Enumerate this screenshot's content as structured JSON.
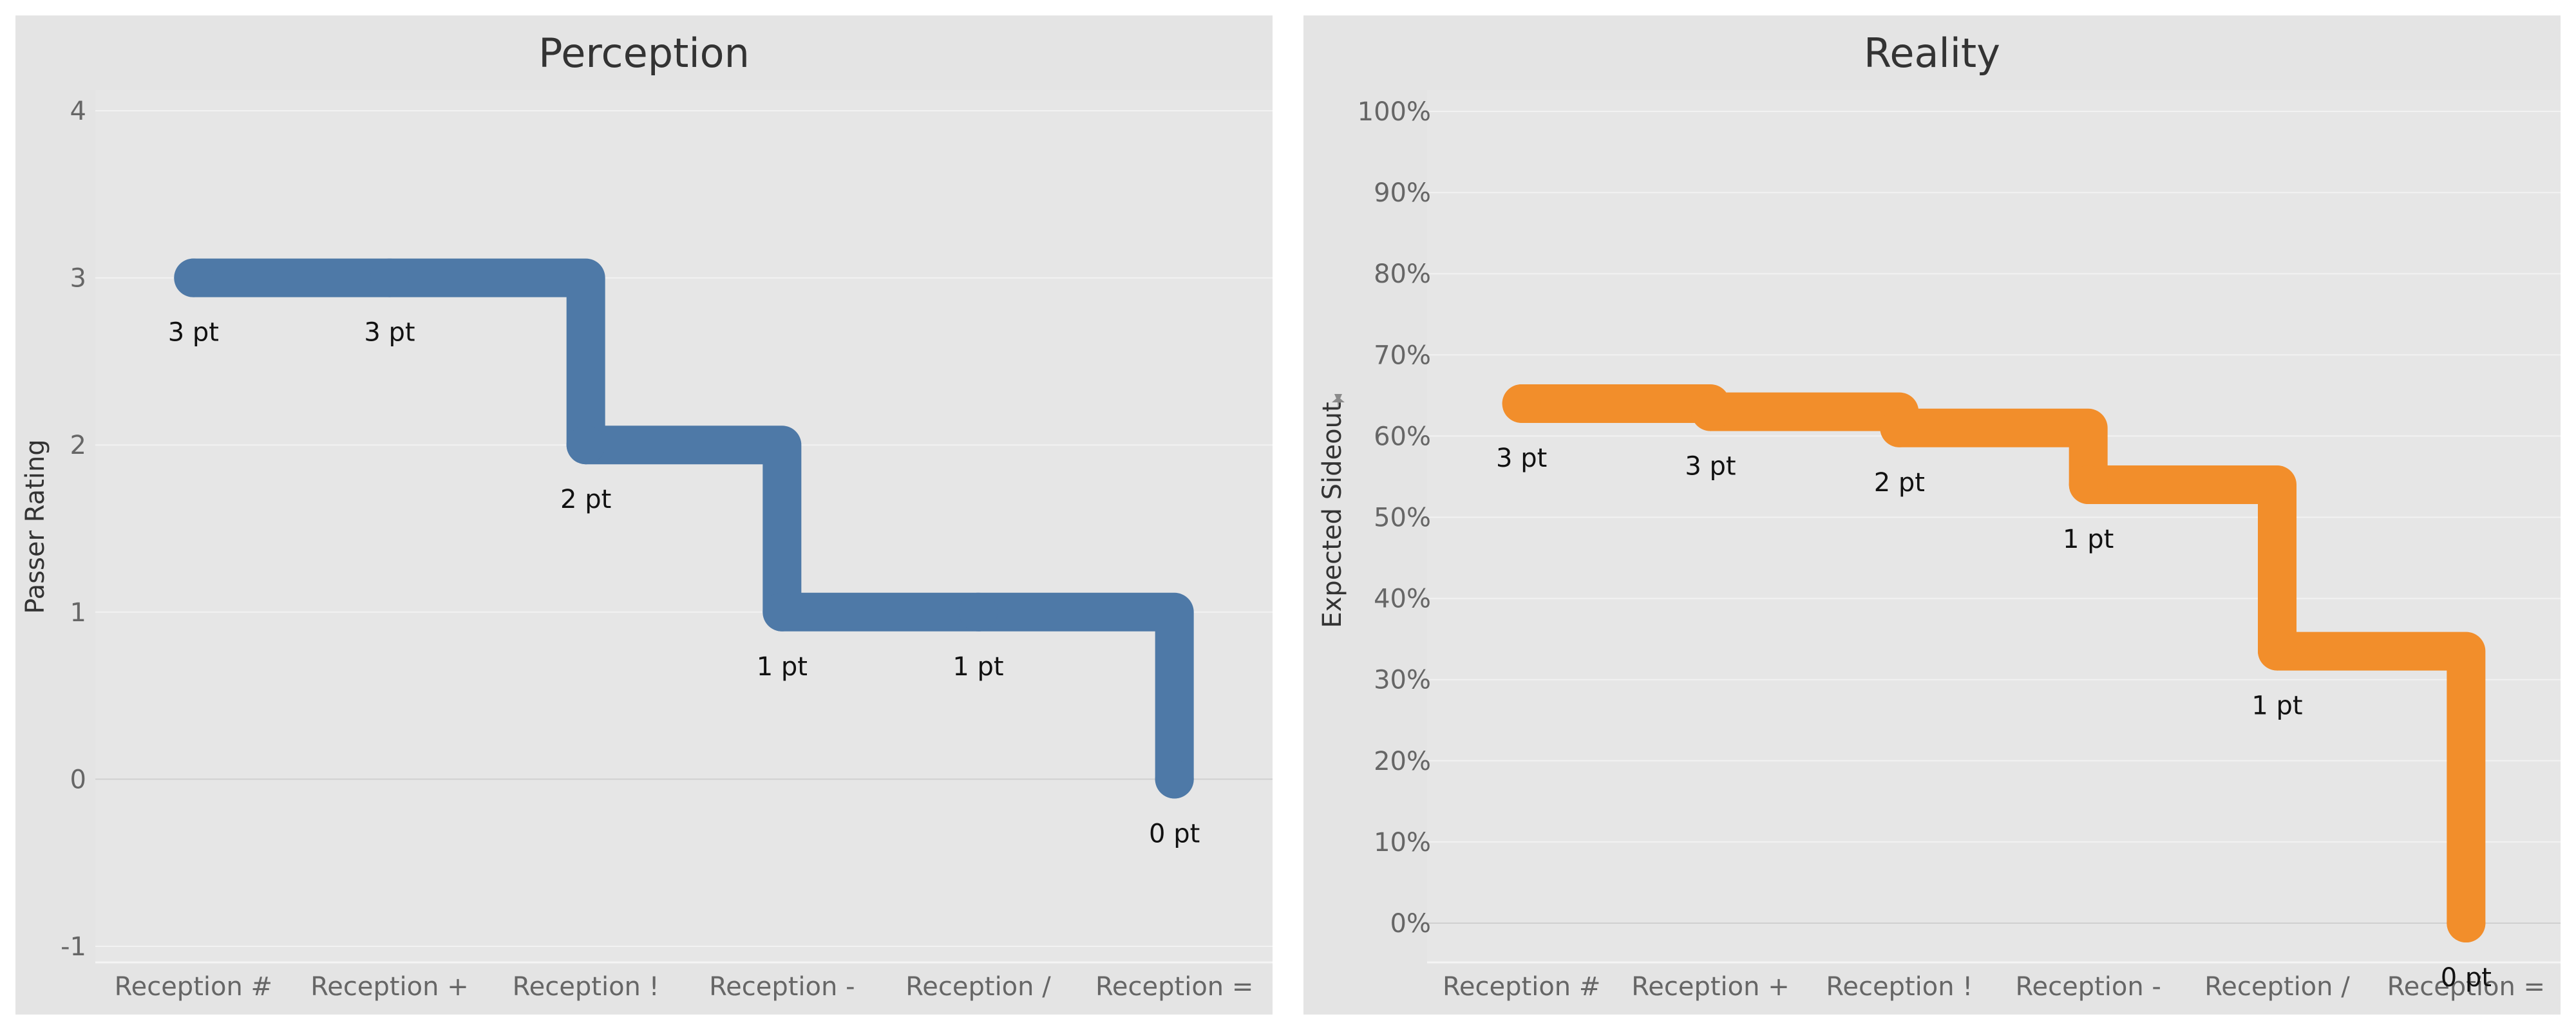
{
  "chart_data": [
    {
      "type": "line",
      "step": true,
      "title": "Perception",
      "xlabel": "",
      "ylabel": "Passer Rating",
      "categories": [
        "Reception #",
        "Reception +",
        "Reception !",
        "Reception -",
        "Reception /",
        "Reception ="
      ],
      "y_ticks": [
        "-1",
        "0",
        "1",
        "2",
        "3",
        "4"
      ],
      "y_tick_values": [
        -1,
        0,
        1,
        2,
        3,
        4
      ],
      "ylim": [
        -1,
        4
      ],
      "grid": true,
      "series": [
        {
          "values": [
            3,
            3,
            2,
            1,
            1,
            0
          ],
          "data_labels": [
            "3 pt",
            "3 pt",
            "2 pt",
            "1 pt",
            "1 pt",
            "0 pt"
          ],
          "color": "#4e79a7"
        }
      ]
    },
    {
      "type": "line",
      "step": true,
      "title": "Reality",
      "xlabel": "",
      "ylabel": "Expected Sideout",
      "categories": [
        "Reception #",
        "Reception +",
        "Reception !",
        "Reception -",
        "Reception /",
        "Reception ="
      ],
      "y_ticks": [
        "0%",
        "10%",
        "20%",
        "30%",
        "40%",
        "50%",
        "60%",
        "70%",
        "80%",
        "90%",
        "100%"
      ],
      "y_tick_values": [
        0,
        10,
        20,
        30,
        40,
        50,
        60,
        70,
        80,
        90,
        100
      ],
      "ylim": [
        0,
        100
      ],
      "grid": true,
      "series": [
        {
          "values": [
            64,
            63,
            61,
            54,
            33.5,
            0
          ],
          "data_labels": [
            "3 pt",
            "3 pt",
            "2 pt",
            "1 pt",
            "1 pt",
            "0 pt"
          ],
          "color": "#f28e2b"
        }
      ]
    }
  ]
}
